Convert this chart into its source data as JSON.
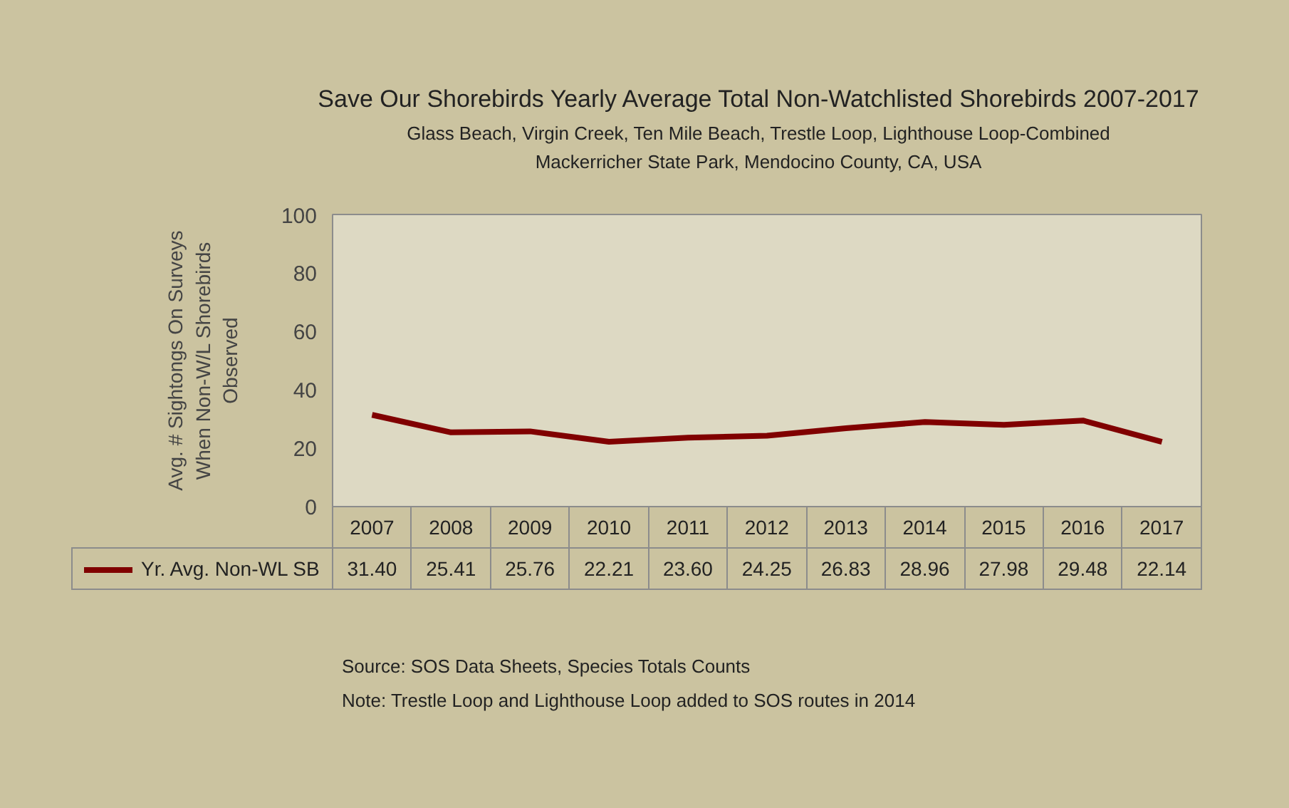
{
  "chart_data": {
    "type": "line",
    "title": "Save Our Shorebirds Yearly Average Total Non-Watchlisted Shorebirds 2007-2017",
    "subtitle": "Glass Beach, Virgin Creek, Ten Mile Beach, Trestle Loop, Lighthouse Loop-Combined\nMackerricher State Park, Mendocino County, CA, USA",
    "ylabel": "Avg. # Sightongs On Surveys\nWhen Non-W/L Shorebirds\nObserved",
    "categories": [
      "2007",
      "2008",
      "2009",
      "2010",
      "2011",
      "2012",
      "2013",
      "2014",
      "2015",
      "2016",
      "2017"
    ],
    "series": [
      {
        "name": "Yr. Avg. Non-WL SB",
        "color": "#800000",
        "values": [
          31.4,
          25.41,
          25.76,
          22.21,
          23.6,
          24.25,
          26.83,
          28.96,
          27.98,
          29.48,
          22.14
        ],
        "value_labels": [
          "31.40",
          "25.41",
          "25.76",
          "22.21",
          "23.60",
          "24.25",
          "26.83",
          "28.96",
          "27.98",
          "29.48",
          "22.14"
        ]
      }
    ],
    "ylim": [
      0,
      100
    ],
    "yticks": [
      0,
      20,
      40,
      60,
      80,
      100
    ],
    "grid": false,
    "legend": "bottom",
    "marker": "none",
    "line_style": "solid",
    "annotations": [
      "Source:  SOS Data Sheets, Species Totals Counts",
      "Note:  Trestle Loop and Lighthouse Loop added to SOS routes in 2014"
    ]
  }
}
